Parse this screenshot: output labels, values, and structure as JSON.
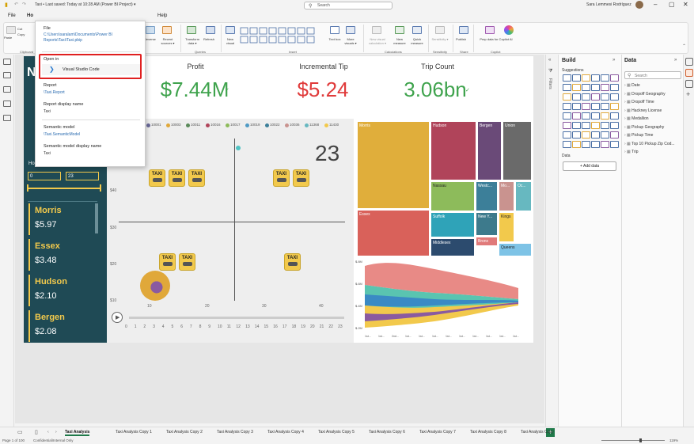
{
  "titlebar": {
    "title": "Taxi • Last saved: Today at 10:28 AM (Power BI Project) ▾",
    "search_placeholder": "Search",
    "user": "Sara Lemmesi Rodríguez"
  },
  "menu": {
    "file": "File",
    "home": "Ho",
    "help": "Help"
  },
  "ribbon": {
    "buttons": [
      {
        "label": "Paste",
        "x": 8
      },
      {
        "label": "Cut",
        "x": 20
      },
      {
        "label": "Copy",
        "x": 20
      },
      {
        "label": "Format painter",
        "x": 20
      }
    ],
    "data_buttons": [
      "Reverse",
      "Recent sources ▾"
    ],
    "queries": [
      "Transform data ▾",
      "Refresh"
    ],
    "insert": [
      "New visual",
      "Text box",
      "More visuals ▾"
    ],
    "calculations": [
      "New visual calculation ▾",
      "New measure",
      "Quick measure"
    ],
    "sensitivity": "Sensitivity ▾",
    "share": "Publish",
    "copilot": "Prep data for Copilot AI",
    "group_labels": {
      "clipboard": "Clipboard",
      "queries": "Queries",
      "insert": "Insert",
      "calculations": "Calculations",
      "sensitivity": "Sensitivity",
      "share": "Share",
      "copilot": "Copilot"
    }
  },
  "popup": {
    "file_label": "File",
    "file_path": "C:\\Users\\saralam\\Documents\\Power BI Reports\\Taxi\\Taxi.pbip",
    "open_in_label": "Open in",
    "open_in_app": "Visual Studio Code",
    "report_label": "Report",
    "report_value": "\\Taxi.Report",
    "report_display_label": "Report display name",
    "report_display_value": "Taxi",
    "semantic_label": "Semantic model",
    "semantic_value": "\\Taxi.SemanticModel",
    "semantic_display_label": "Semantic model display name",
    "semantic_display_value": "Taxi"
  },
  "report": {
    "left_panel": {
      "hour_label": "Ho",
      "slider_min": "0",
      "slider_max": "23",
      "cities": [
        {
          "name": "Morris",
          "value": "$5.97"
        },
        {
          "name": "Essex",
          "value": "$3.48"
        },
        {
          "name": "Hudson",
          "value": "$2.10"
        },
        {
          "name": "Bergen",
          "value": "$2.08"
        }
      ]
    },
    "kpis": [
      {
        "title": "Profit",
        "value": "$7.44M",
        "color": "#3fa34d",
        "mark": "✓"
      },
      {
        "title": "Incremental Tip",
        "value": "$5.24",
        "color": "#e03b3b",
        "mark": "!"
      },
      {
        "title": "Trip Count",
        "value": "3.06bn",
        "color": "#3fa34d",
        "mark": "✓"
      }
    ],
    "scatter": {
      "legend": [
        "10001",
        "10003",
        "10011",
        "10016",
        "10017",
        "10019",
        "10022",
        "10036",
        "11368",
        "11430"
      ],
      "big_number": "23",
      "y_ticks": [
        "$40",
        "$30",
        "$20",
        "$10"
      ],
      "x_ticks": [
        "10",
        "20",
        "30",
        "40"
      ],
      "taxi_label": "TAXI",
      "play_axis": [
        "0",
        "1",
        "2",
        "3",
        "4",
        "5",
        "6",
        "7",
        "8",
        "9",
        "10",
        "11",
        "12",
        "13",
        "14",
        "15",
        "16",
        "17",
        "18",
        "19",
        "20",
        "21",
        "22",
        "23"
      ]
    },
    "treemap": [
      {
        "name": "Morris",
        "color": "#e0ae3b"
      },
      {
        "name": "Hudson",
        "color": "#b0445a"
      },
      {
        "name": "Bergen",
        "color": "#6a4a78"
      },
      {
        "name": "Union",
        "color": "#6a6a6a"
      },
      {
        "name": "Essex",
        "color": "#d9615a"
      },
      {
        "name": "Nassau",
        "color": "#8dbb5b"
      },
      {
        "name": "Westc...",
        "color": "#3c7f99"
      },
      {
        "name": "Mo...",
        "color": "#c9938f"
      },
      {
        "name": "Oc...",
        "color": "#67b8c0"
      },
      {
        "name": "Suffolk",
        "color": "#2fa3b8"
      },
      {
        "name": "New Y...",
        "color": "#3d7a8c"
      },
      {
        "name": "Kings",
        "color": "#f2c94c"
      },
      {
        "name": "Middlesex",
        "color": "#2c4b6e"
      },
      {
        "name": "Bronx",
        "color": "#e07a7a"
      },
      {
        "name": "Queens",
        "color": "#7ec3e6"
      }
    ],
    "stream": {
      "y_ticks": [
        "$.8M",
        "$.6M",
        "$.4M",
        "$.2M",
        "$.0M"
      ],
      "x_ticks": [
        "1st...",
        "1st...",
        "2nd...",
        "1st...",
        "1st...",
        "1st...",
        "1st...",
        "1st...",
        "1st...",
        "1st...",
        "1st...",
        "1st..."
      ]
    }
  },
  "build_panel": {
    "title": "Build",
    "suggestions": "Suggestions",
    "data_label": "Data",
    "add_data": "+ Add data"
  },
  "data_panel": {
    "title": "Data",
    "search_placeholder": "Search",
    "items": [
      "Date",
      "Dropoff Geography",
      "Dropoff Time",
      "Hackney License",
      "Medallion",
      "Pickup Geography",
      "Pickup Time",
      "Top 10 Pickup Zip Cod...",
      "Trip"
    ]
  },
  "filters_label": "Filters",
  "page_tabs": [
    "Taxi Analysis",
    "Taxi Analysis Copy 1",
    "Taxi Analysis Copy 2",
    "Taxi Analysis Copy 3",
    "Taxi Analysis Copy 4",
    "Taxi Analysis Copy 5",
    "Taxi Analysis Copy 6",
    "Taxi Analysis Copy 7",
    "Taxi Analysis Copy 8",
    "Taxi Analysis Copy"
  ],
  "status": {
    "page": "Page 1 of 100",
    "sensitivity": "Confidential\\Internal Only",
    "zoom": "119%"
  }
}
